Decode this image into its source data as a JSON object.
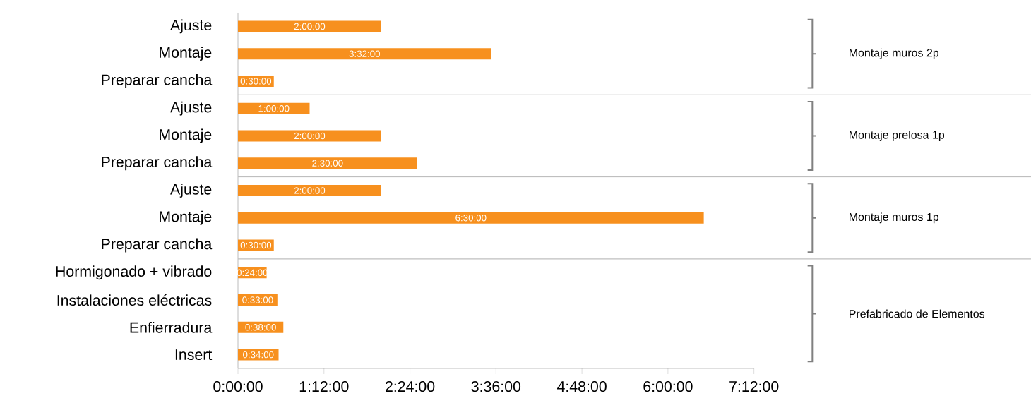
{
  "chart_data": {
    "type": "bar",
    "orientation": "horizontal",
    "categories": [
      "Ajuste",
      "Montaje",
      "Preparar cancha",
      "Ajuste",
      "Montaje",
      "Preparar cancha",
      "Ajuste",
      "Montaje",
      "Preparar cancha",
      "Hormigonado + vibrado",
      "Instalaciones eléctricas",
      "Enfierradura",
      "Insert"
    ],
    "values": [
      2,
      3.5333,
      0.5,
      1,
      2,
      2.5,
      2,
      6.5,
      0.5,
      0.4,
      0.55,
      0.6333,
      0.5667
    ],
    "value_labels": [
      "2:00:00",
      "3:32:00",
      "0:30:00",
      "1:00:00",
      "2:00:00",
      "2:30:00",
      "2:00:00",
      "6:30:00",
      "0:30:00",
      "0:24:00",
      "0:33:00",
      "0:38:00",
      "0:34:00"
    ],
    "color": "#f7901e",
    "xlim": [
      0,
      7.2
    ],
    "xticks": [
      {
        "value": 0,
        "label": "0:00:00"
      },
      {
        "value": 1.2,
        "label": "1:12:00"
      },
      {
        "value": 2.4,
        "label": "2:24:00"
      },
      {
        "value": 3.6,
        "label": "3:36:00"
      },
      {
        "value": 4.8,
        "label": "4:48:00"
      },
      {
        "value": 6,
        "label": "6:00:00"
      },
      {
        "value": 7.2,
        "label": "7:12:00"
      }
    ],
    "annotations": [
      "Montaje muros 2p",
      "Montaje prelosa 1p",
      "Montaje muros 1p",
      "Prefabricado de Elementos"
    ],
    "grid": false
  }
}
